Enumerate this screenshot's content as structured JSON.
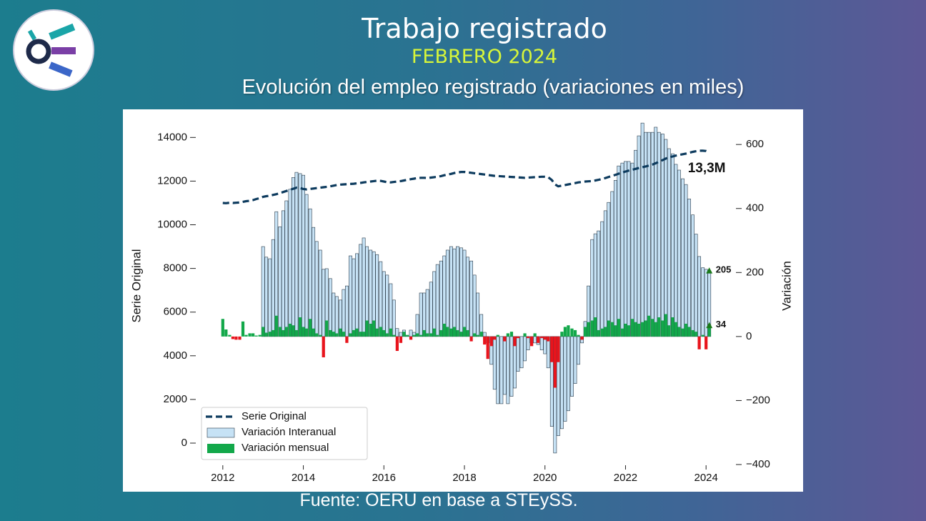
{
  "header": {
    "title": "Trabajo registrado",
    "subtitle": "FEBRERO 2024"
  },
  "source": "Fuente: OERU en base a STEySS.",
  "chart_data": {
    "type": "combo",
    "title": "Evolución del empleo registrado (variaciones en miles)",
    "ylabel": "Serie Original",
    "y2label": "Variación",
    "annotation": "13,3M",
    "xlim": [
      2011.4,
      2024.6
    ],
    "xticks": [
      2012,
      2014,
      2016,
      2018,
      2020,
      2022,
      2024
    ],
    "ylim": [
      -982,
      14894
    ],
    "yticks": [
      0,
      2000,
      4000,
      6000,
      8000,
      10000,
      12000,
      14000
    ],
    "y2lim": [
      -400,
      683
    ],
    "y2ticks": [
      {
        "value": -400,
        "label": "−400"
      },
      {
        "value": -200,
        "label": "−200"
      },
      0,
      200,
      400,
      600
    ],
    "legend": "lower left",
    "x": [
      2012.0,
      2012.08,
      2012.17,
      2012.25,
      2012.33,
      2012.42,
      2012.5,
      2012.58,
      2012.67,
      2012.75,
      2012.83,
      2012.92,
      2013.0,
      2013.08,
      2013.17,
      2013.25,
      2013.33,
      2013.42,
      2013.5,
      2013.58,
      2013.67,
      2013.75,
      2013.83,
      2013.92,
      2014.0,
      2014.08,
      2014.17,
      2014.25,
      2014.33,
      2014.42,
      2014.5,
      2014.58,
      2014.67,
      2014.75,
      2014.83,
      2014.92,
      2015.0,
      2015.08,
      2015.17,
      2015.25,
      2015.33,
      2015.42,
      2015.5,
      2015.58,
      2015.67,
      2015.75,
      2015.83,
      2015.92,
      2016.0,
      2016.08,
      2016.17,
      2016.25,
      2016.33,
      2016.42,
      2016.5,
      2016.58,
      2016.67,
      2016.75,
      2016.83,
      2016.92,
      2017.0,
      2017.08,
      2017.17,
      2017.25,
      2017.33,
      2017.42,
      2017.5,
      2017.58,
      2017.67,
      2017.75,
      2017.83,
      2017.92,
      2018.0,
      2018.08,
      2018.17,
      2018.25,
      2018.33,
      2018.42,
      2018.5,
      2018.58,
      2018.67,
      2018.75,
      2018.83,
      2018.92,
      2019.0,
      2019.08,
      2019.17,
      2019.25,
      2019.33,
      2019.42,
      2019.5,
      2019.58,
      2019.67,
      2019.75,
      2019.83,
      2019.92,
      2020.0,
      2020.08,
      2020.17,
      2020.25,
      2020.33,
      2020.42,
      2020.5,
      2020.58,
      2020.67,
      2020.75,
      2020.83,
      2020.92,
      2021.0,
      2021.08,
      2021.17,
      2021.25,
      2021.33,
      2021.42,
      2021.5,
      2021.58,
      2021.67,
      2021.75,
      2021.83,
      2021.92,
      2022.0,
      2022.08,
      2022.17,
      2022.25,
      2022.33,
      2022.42,
      2022.5,
      2022.58,
      2022.67,
      2022.75,
      2022.83,
      2022.92,
      2023.0,
      2023.08,
      2023.17,
      2023.25,
      2023.33,
      2023.42,
      2023.5,
      2023.58,
      2023.67,
      2023.75,
      2023.83,
      2023.92,
      2024.0,
      2024.08
    ],
    "series": [
      {
        "name": "Serie Original",
        "type": "line",
        "color": "#0d3b5e",
        "dashed": true,
        "values": [
          11000,
          10990,
          11010,
          11000,
          11010,
          11020,
          11050,
          11080,
          11100,
          11130,
          11180,
          11220,
          11280,
          11310,
          11330,
          11370,
          11400,
          11450,
          11500,
          11550,
          11600,
          11650,
          11700,
          11680,
          11640,
          11620,
          11640,
          11660,
          11680,
          11700,
          11720,
          11740,
          11760,
          11790,
          11820,
          11840,
          11850,
          11860,
          11870,
          11880,
          11900,
          11920,
          11940,
          11960,
          11980,
          12000,
          12020,
          12010,
          11980,
          11950,
          11940,
          11960,
          11980,
          12000,
          12030,
          12060,
          12090,
          12110,
          12140,
          12150,
          12150,
          12140,
          12160,
          12180,
          12200,
          12230,
          12270,
          12300,
          12330,
          12370,
          12400,
          12420,
          12420,
          12400,
          12380,
          12360,
          12340,
          12320,
          12300,
          12280,
          12260,
          12240,
          12230,
          12220,
          12210,
          12200,
          12190,
          12180,
          12170,
          12160,
          12150,
          12160,
          12170,
          12180,
          12190,
          12200,
          12200,
          12180,
          12050,
          11850,
          11760,
          11790,
          11820,
          11850,
          11880,
          11910,
          11940,
          11960,
          11980,
          11990,
          12000,
          12030,
          12060,
          12100,
          12140,
          12190,
          12240,
          12290,
          12340,
          12390,
          12440,
          12480,
          12520,
          12560,
          12600,
          12640,
          12670,
          12710,
          12760,
          12820,
          12890,
          12960,
          13030,
          13090,
          13130,
          13170,
          13200,
          13230,
          13260,
          13300,
          13340,
          13370,
          13390,
          13390,
          13380,
          13320
        ]
      },
      {
        "name": "Variación Interanual",
        "type": "bar",
        "axis": "y2",
        "color": "#c6e2f5",
        "values": [
          null,
          null,
          null,
          null,
          null,
          null,
          null,
          null,
          null,
          null,
          null,
          null,
          281,
          248,
          243,
          303,
          390,
          343,
          393,
          424,
          460,
          497,
          513,
          509,
          504,
          444,
          399,
          341,
          297,
          270,
          210,
          212,
          181,
          136,
          125,
          114,
          147,
          158,
          252,
          243,
          259,
          288,
          308,
          281,
          270,
          265,
          256,
          234,
          203,
          192,
          165,
          114,
          25,
          13,
          20,
          2,
          20,
          13,
          69,
          136,
          136,
          147,
          170,
          203,
          225,
          236,
          252,
          270,
          281,
          274,
          281,
          277,
          270,
          248,
          236,
          192,
          136,
          69,
          13,
          -20,
          -87,
          -165,
          -210,
          -210,
          -181,
          -210,
          -187,
          -161,
          -109,
          -98,
          -76,
          -42,
          -20,
          -20,
          -25,
          -42,
          -54,
          -98,
          -281,
          -364,
          -310,
          -288,
          -265,
          -232,
          -187,
          -147,
          -87,
          -20,
          47,
          158,
          303,
          321,
          330,
          359,
          393,
          419,
          453,
          488,
          533,
          542,
          547,
          547,
          542,
          582,
          627,
          667,
          638,
          638,
          638,
          654,
          638,
          633,
          616,
          587,
          571,
          538,
          520,
          493,
          475,
          430,
          380,
          320,
          250,
          215,
          210,
          205
        ]
      },
      {
        "name": "Variación mensual",
        "type": "bar",
        "axis": "y2",
        "color": "#12a84a",
        "negative_color": "#e8141c",
        "values": [
          55,
          22,
          5,
          -8,
          -10,
          -10,
          47,
          5,
          10,
          10,
          3,
          5,
          30,
          12,
          15,
          20,
          65,
          30,
          20,
          30,
          40,
          35,
          20,
          60,
          30,
          25,
          55,
          25,
          10,
          5,
          -65,
          50,
          20,
          15,
          10,
          25,
          15,
          -20,
          10,
          20,
          25,
          15,
          15,
          50,
          40,
          50,
          25,
          30,
          20,
          10,
          25,
          5,
          -45,
          -20,
          15,
          5,
          -10,
          5,
          10,
          5,
          20,
          10,
          10,
          25,
          5,
          20,
          40,
          30,
          25,
          30,
          20,
          15,
          30,
          20,
          -15,
          10,
          5,
          15,
          -25,
          -70,
          -30,
          -10,
          5,
          0,
          -15,
          10,
          15,
          -30,
          -5,
          0,
          10,
          -5,
          -30,
          10,
          -20,
          -5,
          -10,
          -15,
          -80,
          -160,
          -80,
          15,
          30,
          35,
          25,
          20,
          5,
          -10,
          30,
          45,
          50,
          60,
          20,
          25,
          30,
          50,
          45,
          35,
          55,
          25,
          40,
          35,
          55,
          45,
          40,
          45,
          50,
          65,
          55,
          45,
          60,
          50,
          70,
          35,
          60,
          45,
          30,
          25,
          40,
          30,
          20,
          15,
          -40,
          5,
          -40,
          34
        ]
      }
    ]
  }
}
